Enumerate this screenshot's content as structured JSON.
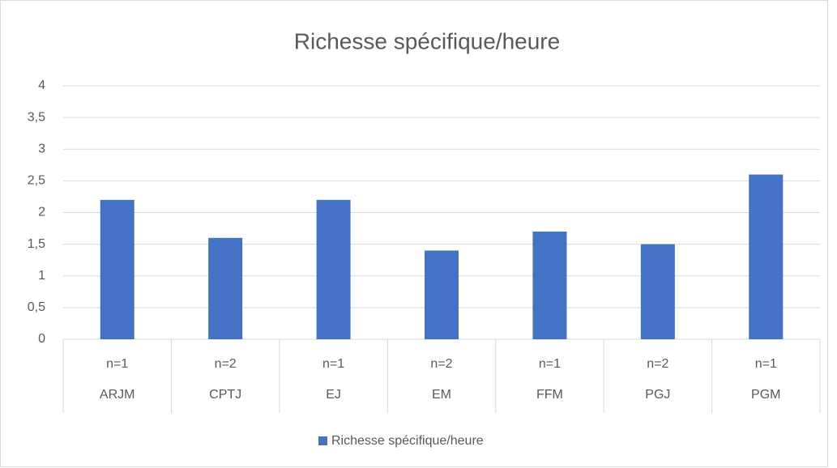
{
  "chart_data": {
    "type": "bar",
    "title": "Richesse spécifique/heure",
    "categories": [
      "ARJM",
      "CPTJ",
      "EJ",
      "EM",
      "FFM",
      "PGJ",
      "PGM"
    ],
    "subcategories": [
      "n=1",
      "n=2",
      "n=1",
      "n=2",
      "n=1",
      "n=2",
      "n=1"
    ],
    "series": [
      {
        "name": "Richesse spécifique/heure",
        "color": "#4472c4",
        "values": [
          2.2,
          1.6,
          2.2,
          1.4,
          1.7,
          1.5,
          2.6
        ]
      }
    ],
    "ylim": [
      0,
      4
    ],
    "yticks": [
      0,
      {
        "value": 0.5,
        "label": "0,5"
      },
      1,
      {
        "value": 1.5,
        "label": "1,5"
      },
      2,
      {
        "value": 2.5,
        "label": "2,5"
      },
      3,
      {
        "value": 3.5,
        "label": "3,5"
      },
      4
    ],
    "grid": true,
    "legend": "bottom"
  }
}
